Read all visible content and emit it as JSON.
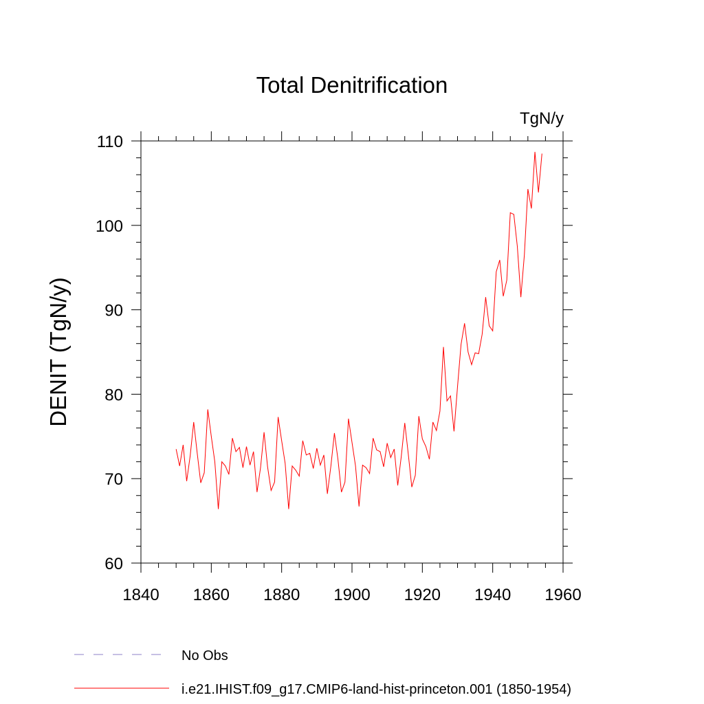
{
  "chart_data": {
    "type": "line",
    "title": "Total Denitrification",
    "units_label": "TgN/y",
    "xlabel": "",
    "ylabel": "DENIT  (TgN/y)",
    "xlim": [
      1840,
      1960
    ],
    "ylim": [
      60,
      110
    ],
    "xticks": [
      1840,
      1860,
      1880,
      1900,
      1920,
      1940,
      1960
    ],
    "yticks": [
      60,
      70,
      80,
      90,
      100,
      110
    ],
    "grid": false,
    "legend_position": "bottom",
    "series": [
      {
        "name": "i.e21.IHIST.f09_g17.CMIP6-land-hist-princeton.001 (1850-1954)",
        "color": "#ff0000",
        "x": [
          1850,
          1851,
          1852,
          1853,
          1854,
          1855,
          1856,
          1857,
          1858,
          1859,
          1860,
          1861,
          1862,
          1863,
          1864,
          1865,
          1866,
          1867,
          1868,
          1869,
          1870,
          1871,
          1872,
          1873,
          1874,
          1875,
          1876,
          1877,
          1878,
          1879,
          1880,
          1881,
          1882,
          1883,
          1884,
          1885,
          1886,
          1887,
          1888,
          1889,
          1890,
          1891,
          1892,
          1893,
          1894,
          1895,
          1896,
          1897,
          1898,
          1899,
          1900,
          1901,
          1902,
          1903,
          1904,
          1905,
          1906,
          1907,
          1908,
          1909,
          1910,
          1911,
          1912,
          1913,
          1914,
          1915,
          1916,
          1917,
          1918,
          1919,
          1920,
          1921,
          1922,
          1923,
          1924,
          1925,
          1926,
          1927,
          1928,
          1929,
          1930,
          1931,
          1932,
          1933,
          1934,
          1935,
          1936,
          1937,
          1938,
          1939,
          1940,
          1941,
          1942,
          1943,
          1944,
          1945,
          1946,
          1947,
          1948,
          1949,
          1950,
          1951,
          1952,
          1953,
          1954
        ],
        "y": [
          73.5,
          71.5,
          74.0,
          69.7,
          72.7,
          76.7,
          73.0,
          69.5,
          70.7,
          78.2,
          75.0,
          72.0,
          66.4,
          72.0,
          71.5,
          70.5,
          74.8,
          73.2,
          73.7,
          71.3,
          73.8,
          71.6,
          73.2,
          68.4,
          71.3,
          75.5,
          71.4,
          68.6,
          69.6,
          77.3,
          74.5,
          71.8,
          66.4,
          71.5,
          71.0,
          70.3,
          74.5,
          72.8,
          73.0,
          71.2,
          73.6,
          71.6,
          72.8,
          68.2,
          71.5,
          75.4,
          72.3,
          68.4,
          69.6,
          77.1,
          74.3,
          71.5,
          66.7,
          71.6,
          71.3,
          70.6,
          74.8,
          73.4,
          73.2,
          71.4,
          74.2,
          72.5,
          73.5,
          69.2,
          72.6,
          76.6,
          72.9,
          69.0,
          70.4,
          77.4,
          74.7,
          73.8,
          72.3,
          76.7,
          75.7,
          78.0,
          85.6,
          79.2,
          79.8,
          75.6,
          80.9,
          85.9,
          88.4,
          85.0,
          83.5,
          84.9,
          84.8,
          87.1,
          91.5,
          88.1,
          87.5,
          94.5,
          95.9,
          91.6,
          93.5,
          101.5,
          101.3,
          97.5,
          91.5,
          96.5,
          104.3,
          102.0,
          108.7,
          103.9,
          108.5
        ]
      }
    ],
    "legend_entries": [
      {
        "label": "No Obs",
        "color": "#8c82c8",
        "style": "dashed"
      },
      {
        "label": "i.e21.IHIST.f09_g17.CMIP6-land-hist-princeton.001 (1850-1954)",
        "color": "#ff0000",
        "style": "solid"
      }
    ]
  }
}
